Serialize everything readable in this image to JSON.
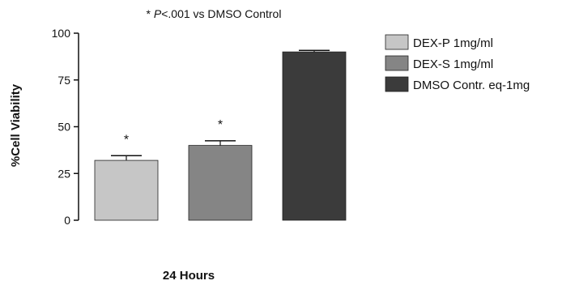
{
  "chart_data": {
    "type": "bar",
    "annotation": {
      "prefix": "* ",
      "italic_part": "P",
      "suffix": "<.001 vs DMSO Control"
    },
    "ylabel": "%Cell Viability",
    "xlabel": "24 Hours",
    "ylim": [
      0,
      100
    ],
    "yticks": [
      0,
      25,
      50,
      75,
      100
    ],
    "grid": false,
    "legend_position": "right",
    "categories": [
      "DEX-P 1mg/ml",
      "DEX-S 1mg/ml",
      "DMSO Contr. eq-1mg"
    ],
    "values": [
      32,
      40,
      90
    ],
    "errors": [
      2.5,
      2.5,
      0.8
    ],
    "significance": [
      "*",
      "*",
      ""
    ],
    "colors": [
      "#c6c6c6",
      "#858585",
      "#3b3b3b"
    ]
  }
}
